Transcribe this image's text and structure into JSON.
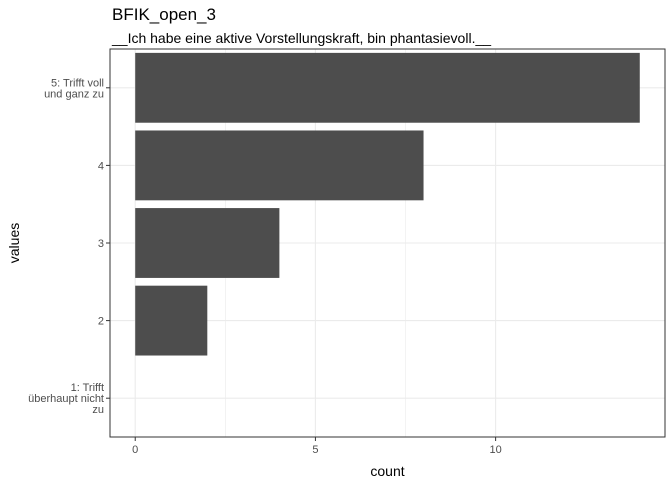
{
  "chart_data": {
    "type": "bar",
    "orientation": "horizontal",
    "title": "BFIK_open_3",
    "subtitle": "__Ich habe eine aktive Vorstellungskraft, bin phantasievoll.__",
    "xlabel": "count",
    "ylabel": "values",
    "categories": [
      "1: Trifft überhaupt nicht zu",
      "2",
      "3",
      "4",
      "5: Trifft voll und ganz zu"
    ],
    "category_lines": [
      [
        "1: Trifft",
        "überhaupt nicht",
        "zu"
      ],
      [
        "2"
      ],
      [
        "3"
      ],
      [
        "4"
      ],
      [
        "5: Trifft voll",
        "und ganz zu"
      ]
    ],
    "values": [
      0,
      2,
      4,
      8,
      14
    ],
    "xlim": [
      -0.7,
      14.7
    ],
    "xticks": [
      0,
      5,
      10
    ],
    "grid": true,
    "bar_color": "#4d4d4d",
    "grid_color": "#ebebeb",
    "panel_border_color": "#333333"
  }
}
